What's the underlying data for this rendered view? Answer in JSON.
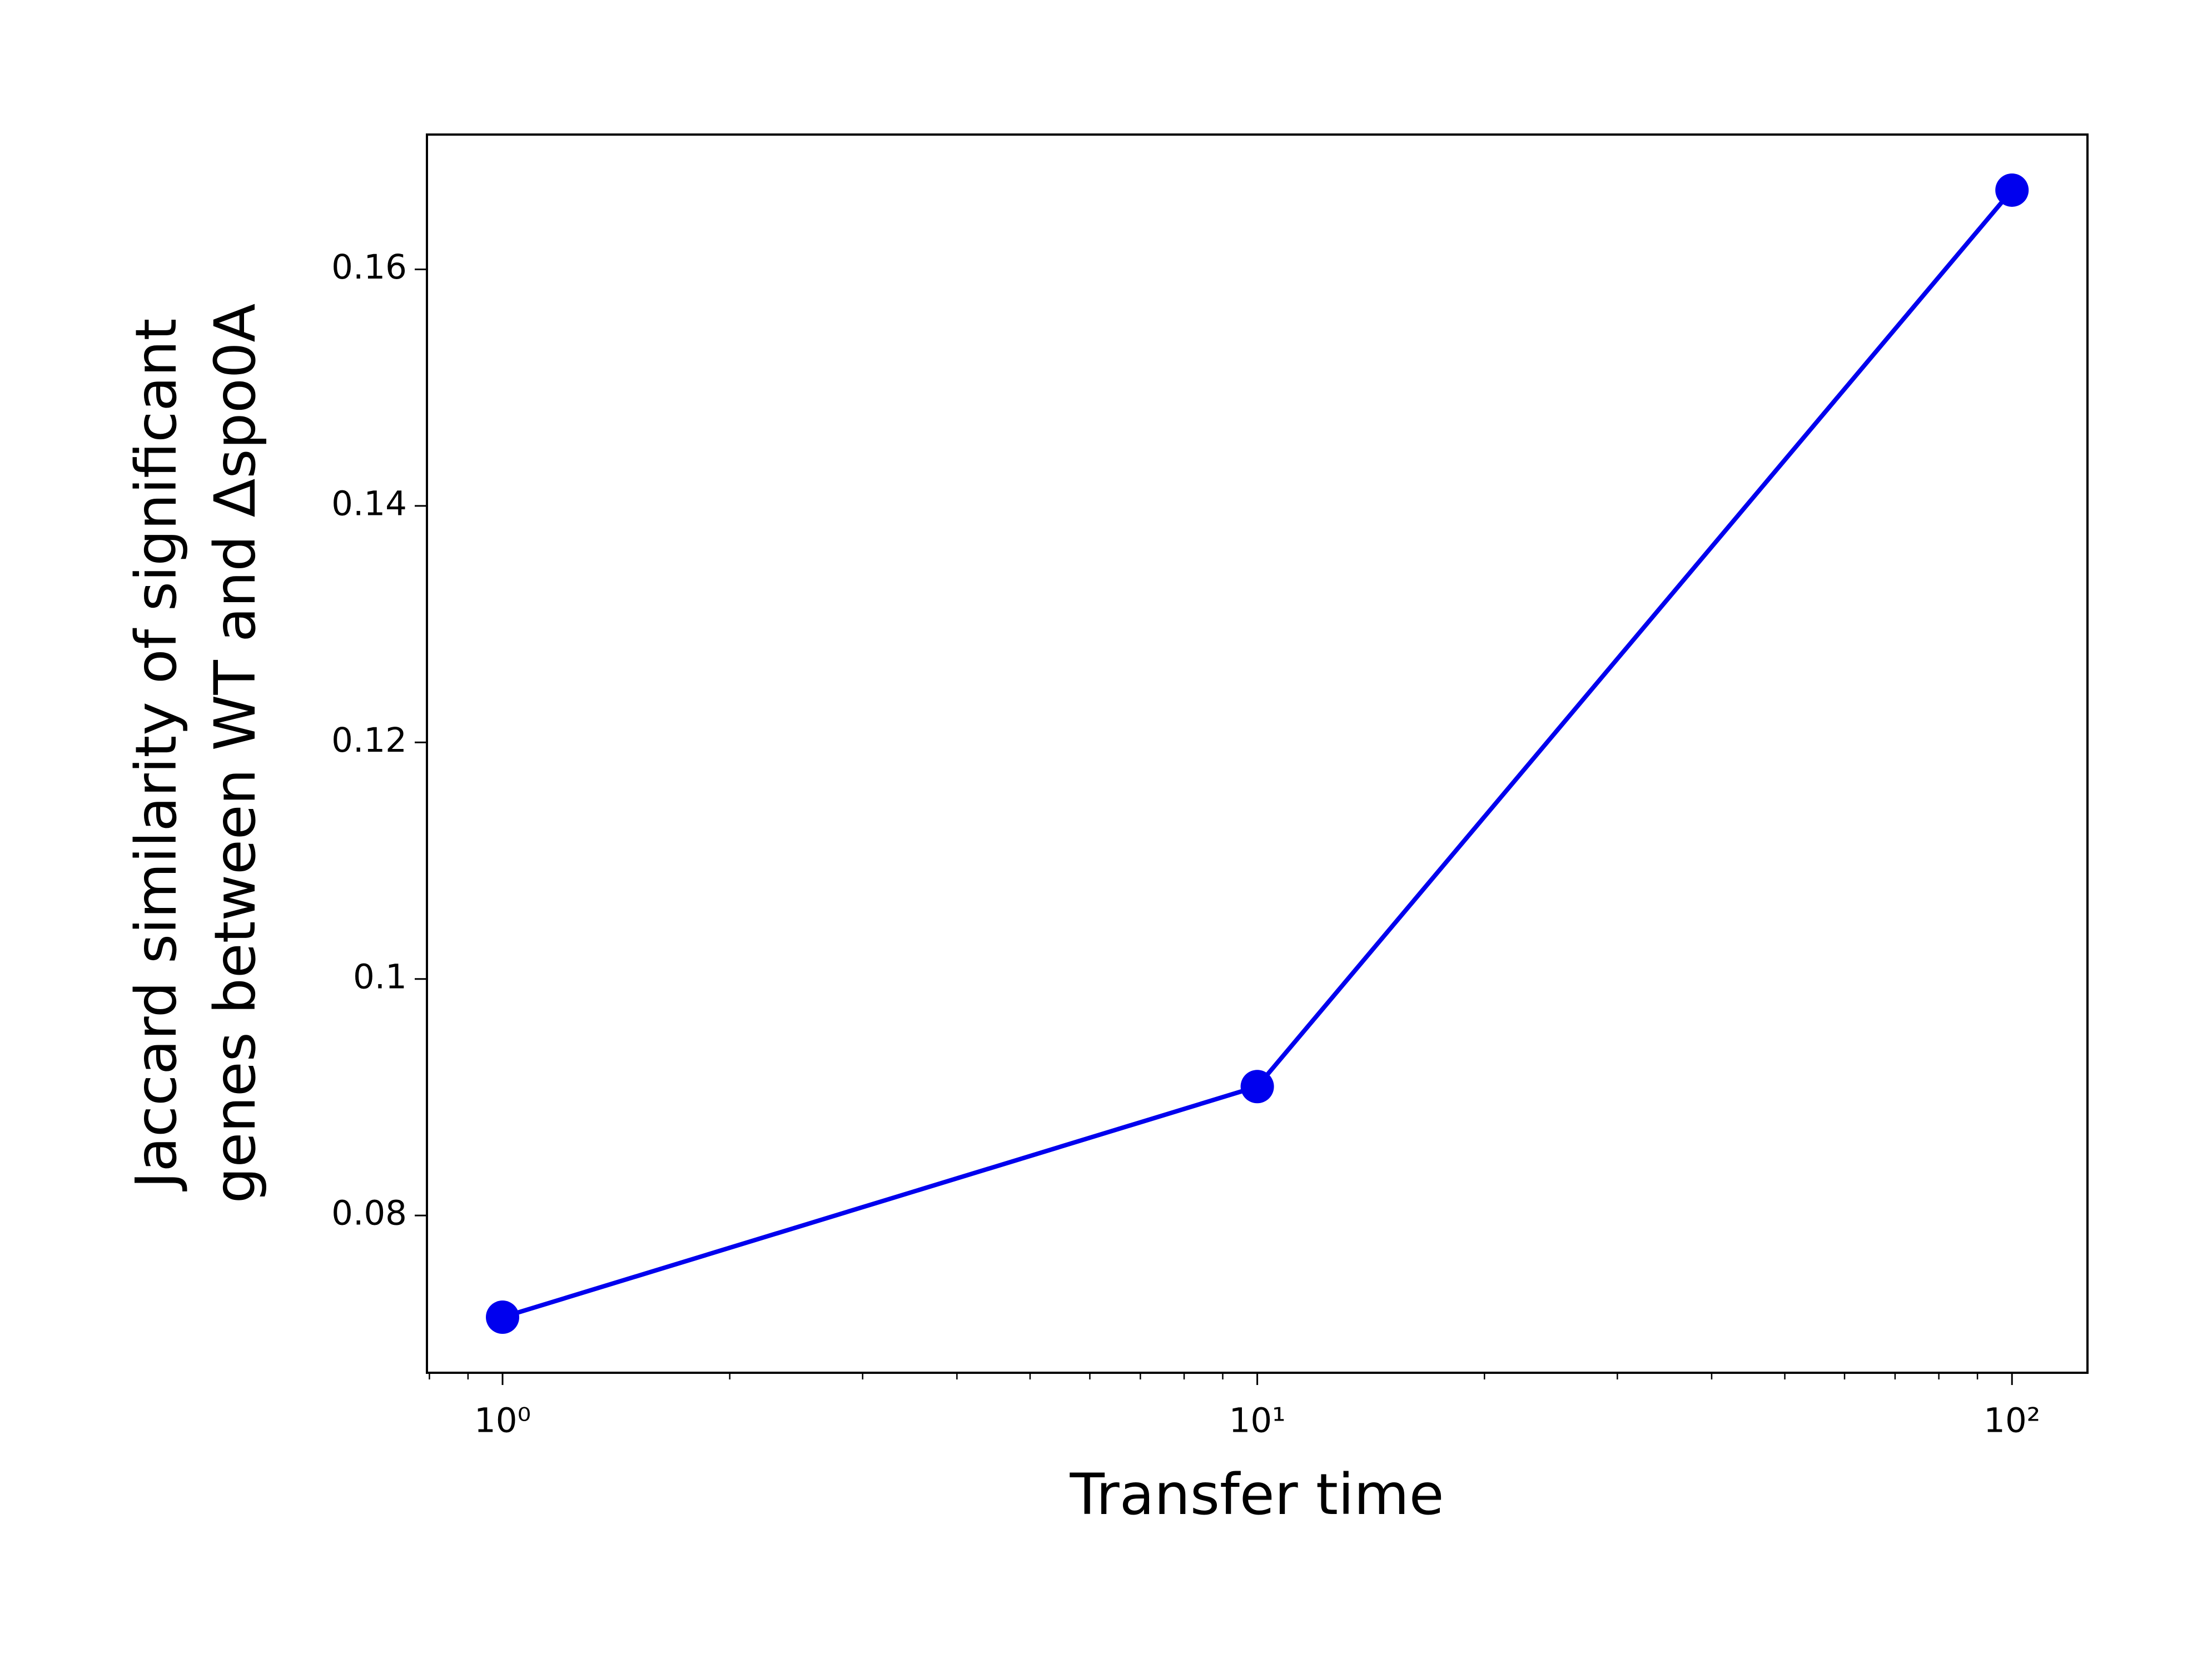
{
  "chart_data": {
    "type": "line",
    "x_label": "Transfer time",
    "y_label": [
      "Jaccard similarity of significant",
      "genes between WT and Δspo0A"
    ],
    "x": [
      1,
      10,
      100
    ],
    "series": [
      {
        "color": "#0000ee",
        "values": [
          0.0714,
          0.0909,
          0.1667
        ]
      }
    ],
    "xscale": "log",
    "xlim": [
      0.794,
      125.9
    ],
    "xticks": [
      {
        "value": 1,
        "label": "10⁰"
      },
      {
        "value": 10,
        "label": "10¹"
      },
      {
        "value": 100,
        "label": "10²"
      }
    ],
    "xminorticks": [
      0.8,
      0.9,
      2,
      3,
      4,
      5,
      6,
      7,
      8,
      9,
      20,
      30,
      40,
      50,
      60,
      70,
      80,
      90
    ],
    "ylim": [
      0.0667,
      0.1714
    ],
    "yticks": [
      0.08,
      0.1,
      0.12,
      0.14,
      0.16
    ],
    "grid": false
  }
}
